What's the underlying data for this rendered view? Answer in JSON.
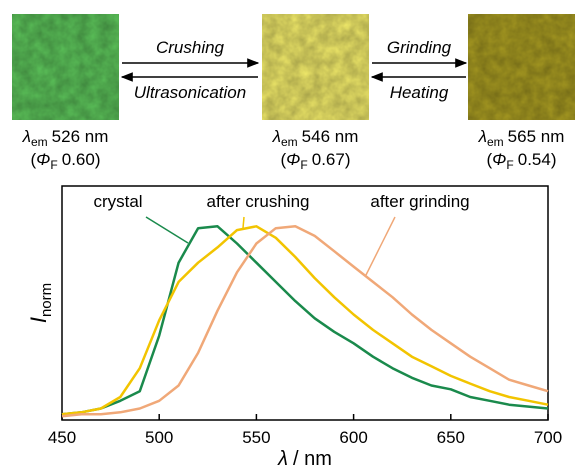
{
  "diagram": {
    "samples": [
      {
        "color": "#5cc35a",
        "emission": {
          "sym": "λ",
          "sub": "em",
          "post": "526 nm"
        },
        "yield": {
          "pre": "(",
          "sym": "Φ",
          "sub": "F",
          "post": "0.60)"
        }
      },
      {
        "color": "#f1ea6a",
        "emission": {
          "sym": "λ",
          "sub": "em",
          "post": "546 nm"
        },
        "yield": {
          "pre": "(",
          "sym": "Φ",
          "sub": "F",
          "post": "0.67)"
        }
      },
      {
        "color": "#a99c22",
        "emission": {
          "sym": "λ",
          "sub": "em",
          "post": "565 nm"
        },
        "yield": {
          "pre": "(",
          "sym": "Φ",
          "sub": "F",
          "post": "0.54)"
        }
      }
    ],
    "transitions": [
      {
        "forward": "Crushing",
        "backward": "Ultrasonication"
      },
      {
        "forward": "Grinding",
        "backward": "Heating"
      }
    ]
  },
  "chart_data": {
    "type": "line",
    "xlabel_symbol": "λ",
    "xlabel_unit": "/ nm",
    "ylabel_symbol": "I",
    "ylabel_sub": "norm",
    "x": [
      450,
      460,
      470,
      480,
      490,
      500,
      510,
      520,
      530,
      540,
      550,
      560,
      570,
      580,
      590,
      600,
      610,
      620,
      630,
      640,
      650,
      660,
      670,
      680,
      690,
      700
    ],
    "xlim": [
      450,
      700
    ],
    "xticks": [
      450,
      500,
      550,
      600,
      650,
      700
    ],
    "ylim": [
      -0.02,
      1.2
    ],
    "series": [
      {
        "name": "crystal",
        "color": "#1a8a4c",
        "values": [
          0.01,
          0.02,
          0.04,
          0.08,
          0.13,
          0.42,
          0.8,
          0.98,
          0.99,
          0.9,
          0.8,
          0.7,
          0.6,
          0.51,
          0.44,
          0.38,
          0.31,
          0.25,
          0.2,
          0.16,
          0.14,
          0.1,
          0.08,
          0.06,
          0.05,
          0.04
        ]
      },
      {
        "name": "after crushing",
        "color": "#f2c400",
        "values": [
          0.01,
          0.02,
          0.04,
          0.1,
          0.25,
          0.5,
          0.7,
          0.8,
          0.88,
          0.97,
          0.99,
          0.93,
          0.83,
          0.72,
          0.62,
          0.53,
          0.45,
          0.38,
          0.31,
          0.26,
          0.21,
          0.17,
          0.13,
          0.1,
          0.08,
          0.06
        ]
      },
      {
        "name": "after grinding",
        "color": "#f0a878",
        "values": [
          0,
          0.01,
          0.01,
          0.02,
          0.04,
          0.08,
          0.16,
          0.33,
          0.55,
          0.75,
          0.9,
          0.98,
          0.99,
          0.94,
          0.86,
          0.78,
          0.7,
          0.62,
          0.53,
          0.45,
          0.38,
          0.31,
          0.25,
          0.19,
          0.16,
          0.13
        ]
      }
    ]
  }
}
